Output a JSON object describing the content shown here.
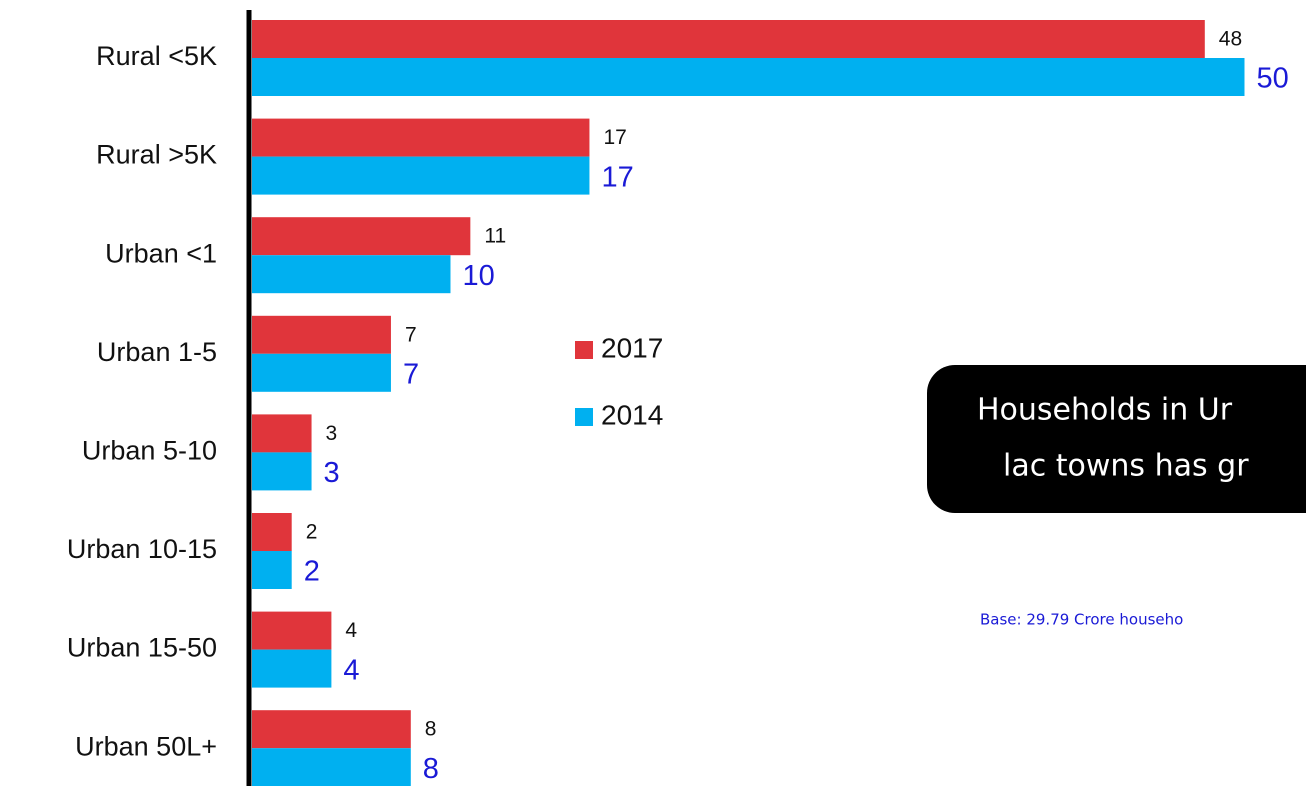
{
  "chart_data": {
    "type": "bar",
    "orientation": "horizontal",
    "categories": [
      "Rural <5K",
      "Rural >5K",
      "Urban <1",
      "Urban 1-5",
      "Urban 5-10",
      "Urban 10-15",
      "Urban 15-50",
      "Urban 50L+"
    ],
    "series": [
      {
        "name": "2017",
        "color": "#e0353b",
        "values": [
          48,
          17,
          11,
          7,
          3,
          2,
          4,
          8
        ]
      },
      {
        "name": "2014",
        "color": "#00b0f0",
        "values": [
          50,
          17,
          10,
          7,
          3,
          2,
          4,
          8
        ]
      }
    ],
    "xlim": [
      0,
      50
    ],
    "annotations": [
      "Households in Ur",
      "lac towns has gr"
    ],
    "note": "Base: 29.79 Crore househo"
  }
}
